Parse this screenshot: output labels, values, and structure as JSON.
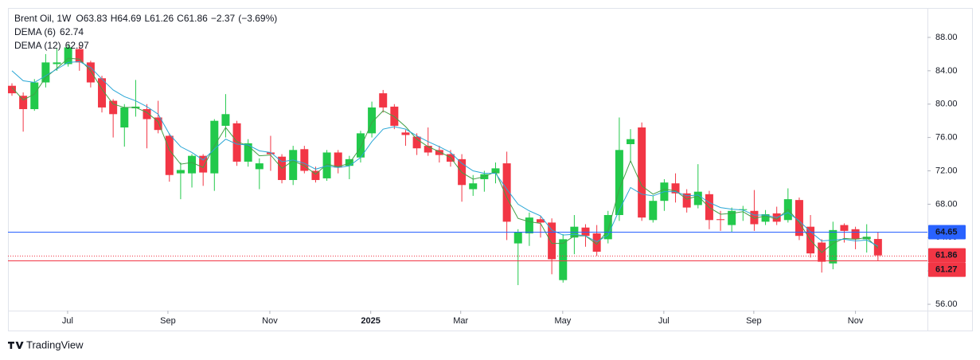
{
  "chart_data": {
    "type": "candlestick",
    "symbol": "Brent Oil, 1W",
    "ohlc_letters": [
      "O",
      "H",
      "L",
      "C"
    ],
    "change": {
      "value": -2.37,
      "label": "−2.37"
    },
    "change_pct": {
      "value": -3.69,
      "label": "(−3.69%)"
    },
    "up_color": "#22c94b",
    "down_color": "#f23645",
    "open": [
      82.2,
      81.0,
      79.4,
      82.6,
      84.8,
      84.8,
      86.6,
      85.0,
      83.1,
      80.4,
      77.2,
      79.5,
      79.4,
      78.4,
      76.2,
      71.7,
      71.7,
      73.8,
      71.7,
      77.4,
      77.7,
      73.1,
      72.2,
      74.2,
      73.7,
      70.9,
      74.6,
      72.0,
      71.1,
      74.2,
      72.6,
      73.6,
      76.5,
      81.3,
      79.7,
      76.6,
      76.1,
      75.0,
      74.5,
      74.0,
      73.4,
      69.8,
      71.0,
      71.7,
      72.9,
      63.3,
      64.5,
      66.2,
      65.8,
      58.9,
      64.0,
      65.2,
      64.5,
      63.8,
      66.7,
      75.2,
      77.2,
      66.1,
      68.4,
      70.5,
      69.3,
      67.9,
      69.2,
      66.2,
      65.5,
      67.3,
      67.2,
      65.9,
      66.9,
      66.1,
      68.5,
      65.3,
      63.4,
      60.9,
      65.5,
      65.0,
      63.8,
      63.83
    ],
    "high": [
      82.5,
      81.4,
      83.0,
      86.0,
      86.7,
      87.2,
      87.0,
      85.2,
      83.4,
      80.6,
      80.0,
      82.9,
      80.0,
      80.4,
      76.5,
      73.0,
      74.0,
      74.0,
      78.2,
      81.2,
      78.0,
      75.8,
      73.5,
      76.2,
      74.0,
      75.0,
      75.0,
      72.5,
      74.5,
      74.5,
      73.8,
      76.8,
      80.3,
      81.7,
      80.0,
      76.9,
      76.5,
      77.2,
      75.0,
      74.5,
      74.0,
      71.5,
      72.0,
      73.0,
      74.3,
      65.0,
      67.0,
      66.6,
      66.3,
      64.4,
      66.7,
      65.6,
      65.5,
      67.2,
      78.4,
      77.0,
      77.8,
      69.0,
      71.0,
      71.7,
      69.8,
      72.8,
      69.6,
      67.2,
      67.6,
      67.8,
      69.7,
      67.3,
      67.7,
      69.9,
      68.8,
      66.7,
      63.8,
      65.9,
      65.7,
      65.3,
      65.6,
      64.69
    ],
    "low": [
      81.0,
      76.7,
      79.2,
      82.0,
      84.0,
      84.5,
      84.0,
      82.0,
      79.0,
      76.0,
      74.9,
      78.5,
      74.7,
      76.5,
      70.7,
      68.6,
      70.0,
      70.2,
      69.6,
      76.0,
      72.6,
      72.5,
      69.8,
      72.0,
      70.5,
      70.3,
      71.7,
      70.6,
      70.8,
      71.7,
      71.0,
      73.0,
      76.0,
      79.0,
      77.0,
      75.0,
      73.9,
      73.8,
      73.0,
      72.5,
      68.3,
      69.0,
      69.5,
      70.5,
      63.7,
      58.3,
      63.0,
      64.0,
      59.6,
      58.6,
      62.0,
      62.9,
      61.8,
      63.3,
      66.0,
      73.0,
      66.0,
      65.8,
      67.2,
      68.2,
      67.0,
      67.5,
      65.0,
      64.8,
      64.7,
      66.0,
      64.8,
      65.5,
      65.5,
      65.8,
      63.7,
      61.6,
      59.8,
      60.2,
      63.4,
      62.6,
      62.2,
      61.26
    ],
    "close": [
      81.3,
      79.4,
      82.6,
      85.0,
      85.0,
      86.8,
      85.0,
      82.6,
      79.6,
      78.8,
      79.6,
      79.7,
      78.2,
      76.9,
      71.5,
      72.1,
      73.8,
      71.8,
      78.0,
      78.8,
      73.1,
      75.3,
      72.9,
      74.0,
      70.9,
      74.5,
      72.0,
      70.9,
      74.2,
      72.4,
      73.4,
      76.5,
      79.6,
      79.6,
      77.4,
      76.3,
      74.7,
      74.2,
      73.9,
      73.1,
      70.3,
      70.5,
      71.6,
      72.3,
      65.9,
      64.6,
      66.4,
      65.8,
      61.4,
      63.8,
      65.3,
      64.2,
      62.3,
      66.7,
      74.5,
      75.8,
      66.4,
      68.4,
      70.6,
      69.3,
      67.6,
      69.5,
      66.1,
      66.1,
      67.2,
      67.4,
      65.6,
      66.8,
      65.9,
      68.6,
      64.2,
      62.1,
      61.1,
      64.9,
      64.8,
      63.8,
      64.1,
      61.86
    ],
    "indicators": [
      {
        "name": "DEMA (6)",
        "color": "#43a047",
        "values": [
          82.0,
          80.5,
          81.2,
          83.2,
          84.3,
          85.5,
          85.4,
          84.0,
          81.8,
          80.0,
          79.6,
          79.6,
          79.0,
          77.9,
          74.5,
          72.8,
          73.0,
          72.4,
          75.0,
          77.2,
          75.5,
          75.0,
          73.8,
          73.9,
          72.3,
          73.2,
          72.6,
          71.6,
          72.8,
          72.5,
          72.9,
          74.8,
          77.8,
          79.2,
          78.5,
          77.3,
          75.8,
          74.9,
          74.3,
          73.6,
          71.8,
          71.0,
          71.3,
          71.9,
          68.8,
          66.3,
          65.9,
          65.7,
          63.3,
          63.3,
          64.2,
          64.2,
          63.2,
          64.9,
          69.8,
          73.2,
          70.2,
          69.2,
          69.8,
          69.6,
          68.6,
          69.0,
          67.6,
          66.8,
          66.9,
          67.1,
          66.3,
          66.6,
          66.2,
          67.4,
          65.8,
          63.7,
          62.2,
          63.3,
          63.9,
          63.8,
          64.0,
          62.74
        ]
      },
      {
        "name": "DEMA (12)",
        "color": "#2aa7d6",
        "values": [
          84.0,
          82.8,
          82.6,
          83.4,
          84.2,
          85.0,
          85.1,
          84.4,
          83.0,
          81.7,
          80.9,
          80.4,
          79.7,
          78.8,
          76.4,
          74.9,
          74.2,
          73.3,
          74.6,
          75.8,
          75.2,
          75.1,
          74.4,
          74.2,
          73.1,
          73.3,
          72.9,
          72.2,
          72.6,
          72.4,
          72.6,
          73.6,
          75.5,
          77.0,
          77.3,
          77.0,
          76.2,
          75.5,
          74.9,
          74.2,
          72.9,
          72.0,
          71.7,
          71.7,
          69.8,
          68.0,
          67.2,
          66.6,
          64.9,
          64.3,
          64.4,
          64.2,
          63.5,
          64.3,
          67.3,
          70.0,
          69.2,
          69.0,
          69.5,
          69.5,
          69.0,
          69.1,
          68.2,
          67.6,
          67.4,
          67.3,
          66.7,
          66.7,
          66.4,
          67.0,
          66.0,
          64.7,
          63.6,
          63.7,
          63.8,
          63.6,
          63.7,
          62.97
        ]
      }
    ],
    "price_lines": [
      {
        "value": 64.65,
        "color": "#2962ff",
        "style": "solid"
      },
      {
        "value": 61.86,
        "color": "#f23645",
        "style": "dotted"
      },
      {
        "value": 61.27,
        "color": "#f23645",
        "style": "solid"
      }
    ],
    "xlim": [
      -0.354,
      81.4
    ],
    "xticks": [
      {
        "value": 4.95,
        "label": "Jul"
      },
      {
        "value": 13.87,
        "label": "Sep"
      },
      {
        "value": 22.93,
        "label": "Nov"
      },
      {
        "value": 31.9,
        "label": "2025",
        "bold": true
      },
      {
        "value": 39.9,
        "label": "Mar"
      },
      {
        "value": 48.97,
        "label": "May"
      },
      {
        "value": 57.96,
        "label": "Jul"
      },
      {
        "value": 65.96,
        "label": "Sep"
      },
      {
        "value": 75.0,
        "label": "Nov"
      }
    ],
    "ylim": [
      55.24,
      91.53
    ],
    "yticks": [
      {
        "value": 56,
        "label": "56.00"
      },
      {
        "value": 60,
        "label": "60.00"
      },
      {
        "value": 64,
        "label": "64.00"
      },
      {
        "value": 68,
        "label": "68.00"
      },
      {
        "value": 72,
        "label": "72.00"
      },
      {
        "value": 76,
        "label": "76.00"
      },
      {
        "value": 80,
        "label": "80.00"
      },
      {
        "value": 84,
        "label": "84.00"
      },
      {
        "value": 88,
        "label": "88.00"
      }
    ]
  },
  "footer": {
    "brand": "TradingView"
  }
}
